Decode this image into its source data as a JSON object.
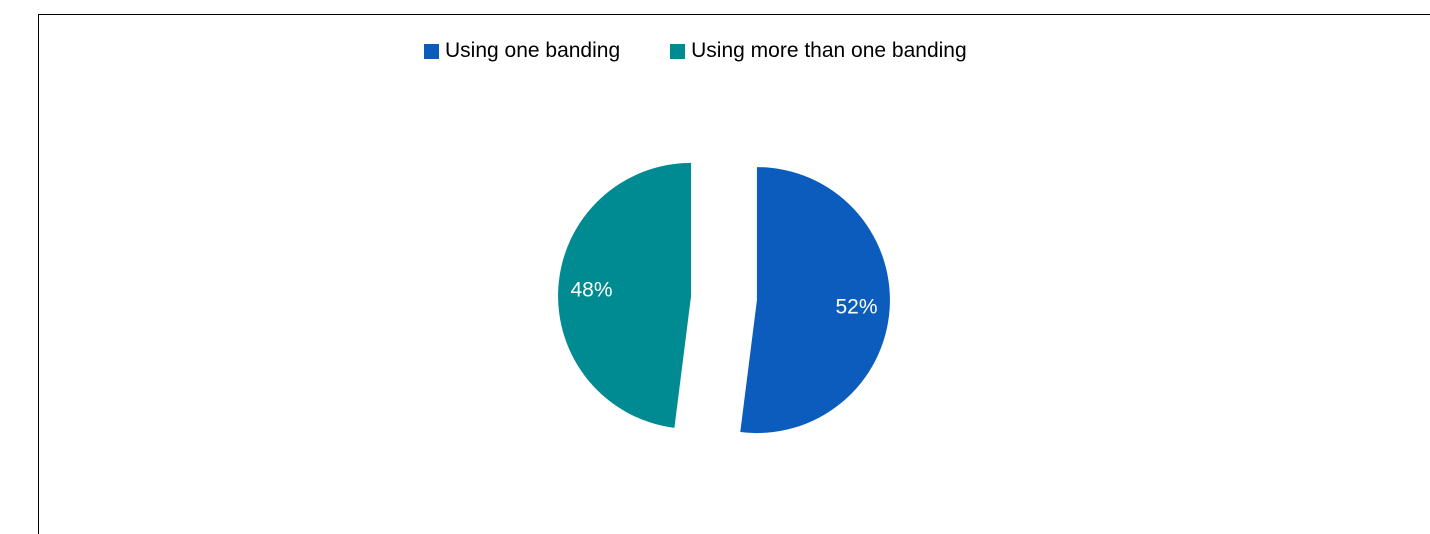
{
  "chart_data": {
    "type": "pie",
    "title": "",
    "exploded": true,
    "legend_position": "top",
    "slices": [
      {
        "label": "Using one banding",
        "value": 52,
        "display": "52%",
        "color": "#0b5cbc"
      },
      {
        "label": "Using more than one banding",
        "value": 48,
        "display": "48%",
        "color": "#008b92"
      }
    ]
  }
}
